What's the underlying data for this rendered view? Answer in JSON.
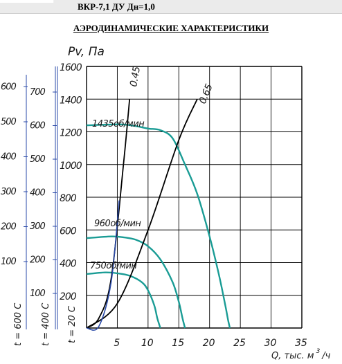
{
  "header": {
    "title": "ВКР-7,1 ДУ Дн=1,0"
  },
  "main_title": "АЭРОДИНАМИЧЕСКИЕ ХАРАКТЕРИСТИКИ",
  "colors": {
    "pressure_curve": "#1a9c95",
    "efficiency_line": "#000000",
    "start_line": "#2a4aa8",
    "grid": "#000000",
    "axis_blue": "#2a4aa8"
  },
  "chart_data": {
    "type": "line",
    "ylabel": "Pv, Па",
    "xlabel": "Q, тыс. м³/ч",
    "xlabel_parts": {
      "main": "Q, тыс. м",
      "sup": "3",
      "tail": "/ч"
    },
    "xlim": [
      0,
      35
    ],
    "ylim": [
      0,
      1600
    ],
    "x_ticks": [
      "5",
      "10",
      "15",
      "20",
      "25",
      "30",
      "35"
    ],
    "y_ticks": [
      "200",
      "400",
      "600",
      "800",
      "1000",
      "1200",
      "1400",
      "1600"
    ],
    "grid": true,
    "extra_axes": [
      {
        "label": "t = 20 С",
        "ticks": [
          "200",
          "400",
          "600",
          "800",
          "1000",
          "1200",
          "1400",
          "1600"
        ]
      },
      {
        "label": "t = 400 С",
        "ticks": [
          "100",
          "200",
          "300",
          "400",
          "500",
          "600",
          "700"
        ]
      },
      {
        "label": "t = 600 С",
        "ticks": [
          "100",
          "200",
          "300",
          "400",
          "500",
          "600"
        ]
      }
    ],
    "series": [
      {
        "name": "1435об/мин",
        "x": [
          0,
          4,
          6,
          8,
          10,
          12,
          14,
          16,
          18,
          20,
          21.5,
          22.5,
          23,
          23.3
        ],
        "y": [
          1240,
          1245,
          1245,
          1235,
          1220,
          1210,
          1160,
          1000,
          820,
          560,
          330,
          150,
          50,
          0
        ]
      },
      {
        "name": "960об/мин",
        "x": [
          0,
          4,
          6,
          8,
          10,
          12,
          14,
          15,
          15.6,
          16
        ],
        "y": [
          550,
          560,
          555,
          540,
          500,
          420,
          280,
          160,
          60,
          0
        ]
      },
      {
        "name": "750об/мин",
        "x": [
          0,
          3,
          5,
          7,
          9,
          10,
          11,
          11.5,
          12
        ],
        "y": [
          330,
          340,
          335,
          320,
          280,
          230,
          140,
          60,
          0
        ]
      }
    ],
    "efficiency_lines": [
      {
        "name": "0.45",
        "x": [
          0,
          2,
          4,
          6,
          7
        ],
        "y": [
          0,
          60,
          300,
          1000,
          1400
        ]
      },
      {
        "name": "0.65",
        "x": [
          0,
          5,
          10,
          15,
          18
        ],
        "y": [
          0,
          150,
          600,
          1150,
          1400
        ]
      }
    ],
    "start_line": {
      "x": [
        0,
        2,
        4,
        5.3
      ],
      "y": [
        0,
        10,
        280,
        780
      ]
    },
    "annotations": [
      "1435об/мин",
      "960об/мин",
      "750об/мин",
      "0.45",
      "0.65"
    ]
  }
}
